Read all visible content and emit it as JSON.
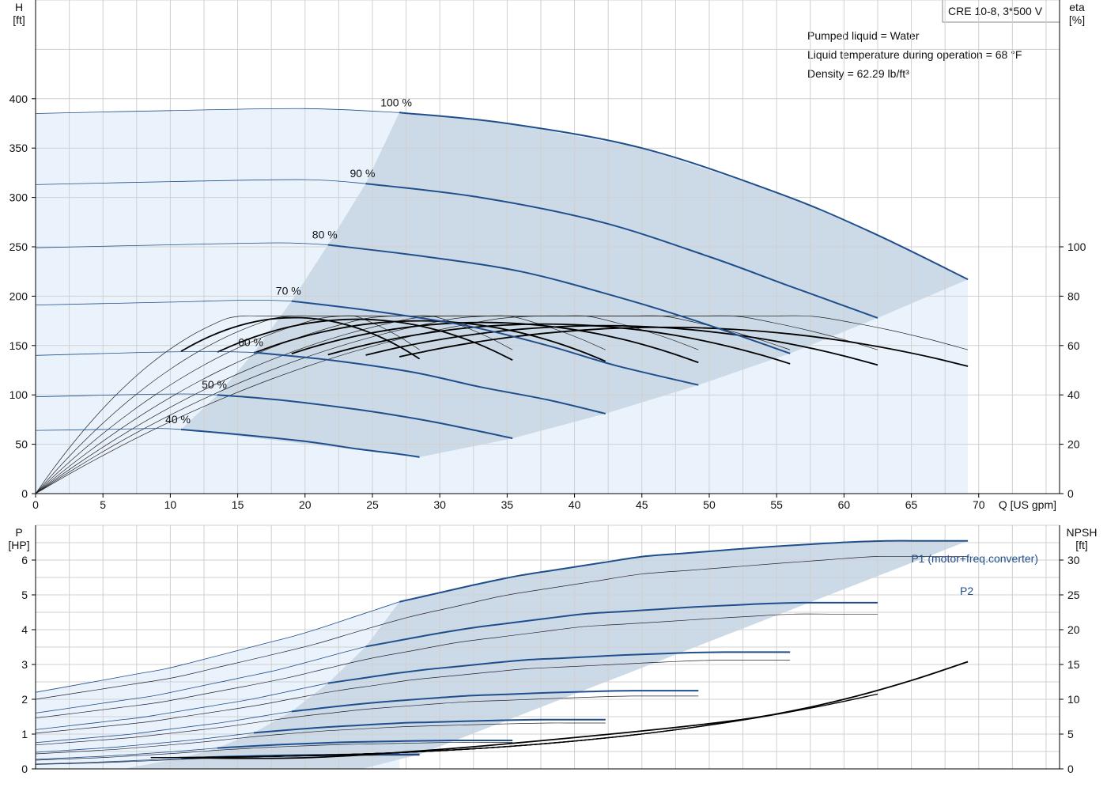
{
  "header": {
    "model": "CRE 10-8, 3*500 V"
  },
  "notes": [
    "Pumped liquid = Water",
    "Liquid temperature during operation = 68 °F",
    "Density = 62.29 lb/ft³"
  ],
  "colors": {
    "curve_blue": "#1f4e8c",
    "area_light": "#eaf3fc",
    "area_dark": "#ccdae7",
    "grid": "#d0d0d0",
    "axis": "#000000"
  },
  "axes": {
    "top_left_name": "H",
    "top_left_unit": "[ft]",
    "top_right_name": "eta",
    "top_right_unit": "[%]",
    "x_label": "Q [US gpm]",
    "bottom_left_name": "P",
    "bottom_left_unit": "[HP]",
    "bottom_right_name": "NPSH",
    "bottom_right_unit": "[ft]"
  },
  "chart_data": [
    {
      "type": "line",
      "name": "head",
      "x_unit": "Q [US gpm]",
      "xlim": [
        0,
        76
      ],
      "xticks": [
        0,
        5,
        10,
        15,
        20,
        25,
        30,
        35,
        40,
        45,
        50,
        55,
        60,
        65,
        70
      ],
      "ylim": [
        0,
        500
      ],
      "yticks": [
        0,
        50,
        100,
        150,
        200,
        250,
        300,
        350,
        400
      ],
      "y2lim": [
        0,
        200
      ],
      "y2ticks": [
        0,
        20,
        40,
        60,
        80,
        100
      ],
      "grid": true,
      "series": [
        {
          "name": "100 %",
          "x": [
            0,
            10,
            20,
            27,
            35,
            45,
            55,
            62,
            69.2
          ],
          "y": [
            385,
            388,
            390,
            386,
            375,
            350,
            305,
            265,
            217
          ]
        },
        {
          "name": "90 %",
          "x": [
            0,
            10,
            20,
            24.5,
            33,
            42,
            50,
            56,
            62.5
          ],
          "y": [
            313,
            316,
            318,
            314,
            300,
            275,
            240,
            210,
            178
          ]
        },
        {
          "name": "80 %",
          "x": [
            0,
            10,
            18,
            21.7,
            29,
            36,
            43,
            49,
            56
          ],
          "y": [
            249,
            252,
            254,
            252,
            240,
            225,
            200,
            175,
            142
          ]
        },
        {
          "name": "70 %",
          "x": [
            0,
            10,
            16,
            19,
            25,
            32,
            38,
            43,
            49.2
          ],
          "y": [
            191,
            194,
            196,
            195,
            185,
            170,
            150,
            130,
            110
          ]
        },
        {
          "name": "60 %",
          "x": [
            0,
            8,
            13,
            16.2,
            22,
            28,
            33,
            38,
            42.3
          ],
          "y": [
            140,
            143,
            144,
            143,
            135,
            123,
            108,
            95,
            81
          ]
        },
        {
          "name": "50 %",
          "x": [
            0,
            6,
            11,
            13.5,
            18,
            24,
            29,
            33,
            35.4
          ],
          "y": [
            98,
            100,
            101,
            100,
            95,
            85,
            74,
            63,
            56
          ]
        },
        {
          "name": "40 %",
          "x": [
            0,
            5,
            9,
            10.8,
            15,
            20,
            24,
            27,
            28.5
          ],
          "y": [
            64,
            65,
            66,
            65,
            60,
            53,
            45,
            40,
            37
          ]
        }
      ],
      "efficiency_lines_count": 14,
      "efficiency_peak": 70
    },
    {
      "type": "line",
      "name": "power",
      "x_unit": "Q [US gpm]",
      "xlim": [
        0,
        76
      ],
      "ylim": [
        0,
        7
      ],
      "yticks": [
        0,
        1,
        2,
        3,
        4,
        5,
        6
      ],
      "y2lim": [
        0,
        35
      ],
      "y2ticks": [
        0,
        5,
        10,
        15,
        20,
        25,
        30
      ],
      "grid": true,
      "series": [
        {
          "name": "P1 (motor+freq.converter)",
          "x": [
            0,
            10,
            20,
            27,
            35,
            45,
            55,
            62,
            69.2
          ],
          "y": [
            2.2,
            2.9,
            3.9,
            4.8,
            5.5,
            6.1,
            6.4,
            6.55,
            6.55
          ]
        },
        {
          "name": "P2",
          "x": [
            0,
            10,
            20,
            27,
            35,
            45,
            55,
            62,
            69.2
          ],
          "y": [
            2.0,
            2.6,
            3.5,
            4.3,
            5.0,
            5.6,
            5.9,
            6.1,
            6.1
          ]
        },
        {
          "name": "NPSH",
          "x": [
            11,
            20,
            30,
            40,
            50,
            55,
            60,
            65,
            69.2
          ],
          "y": [
            1.6,
            1.6,
            2.8,
            4.5,
            6.5,
            7.9,
            10.0,
            12.7,
            15.4
          ]
        }
      ],
      "npsh_unit": "[ft]"
    }
  ]
}
